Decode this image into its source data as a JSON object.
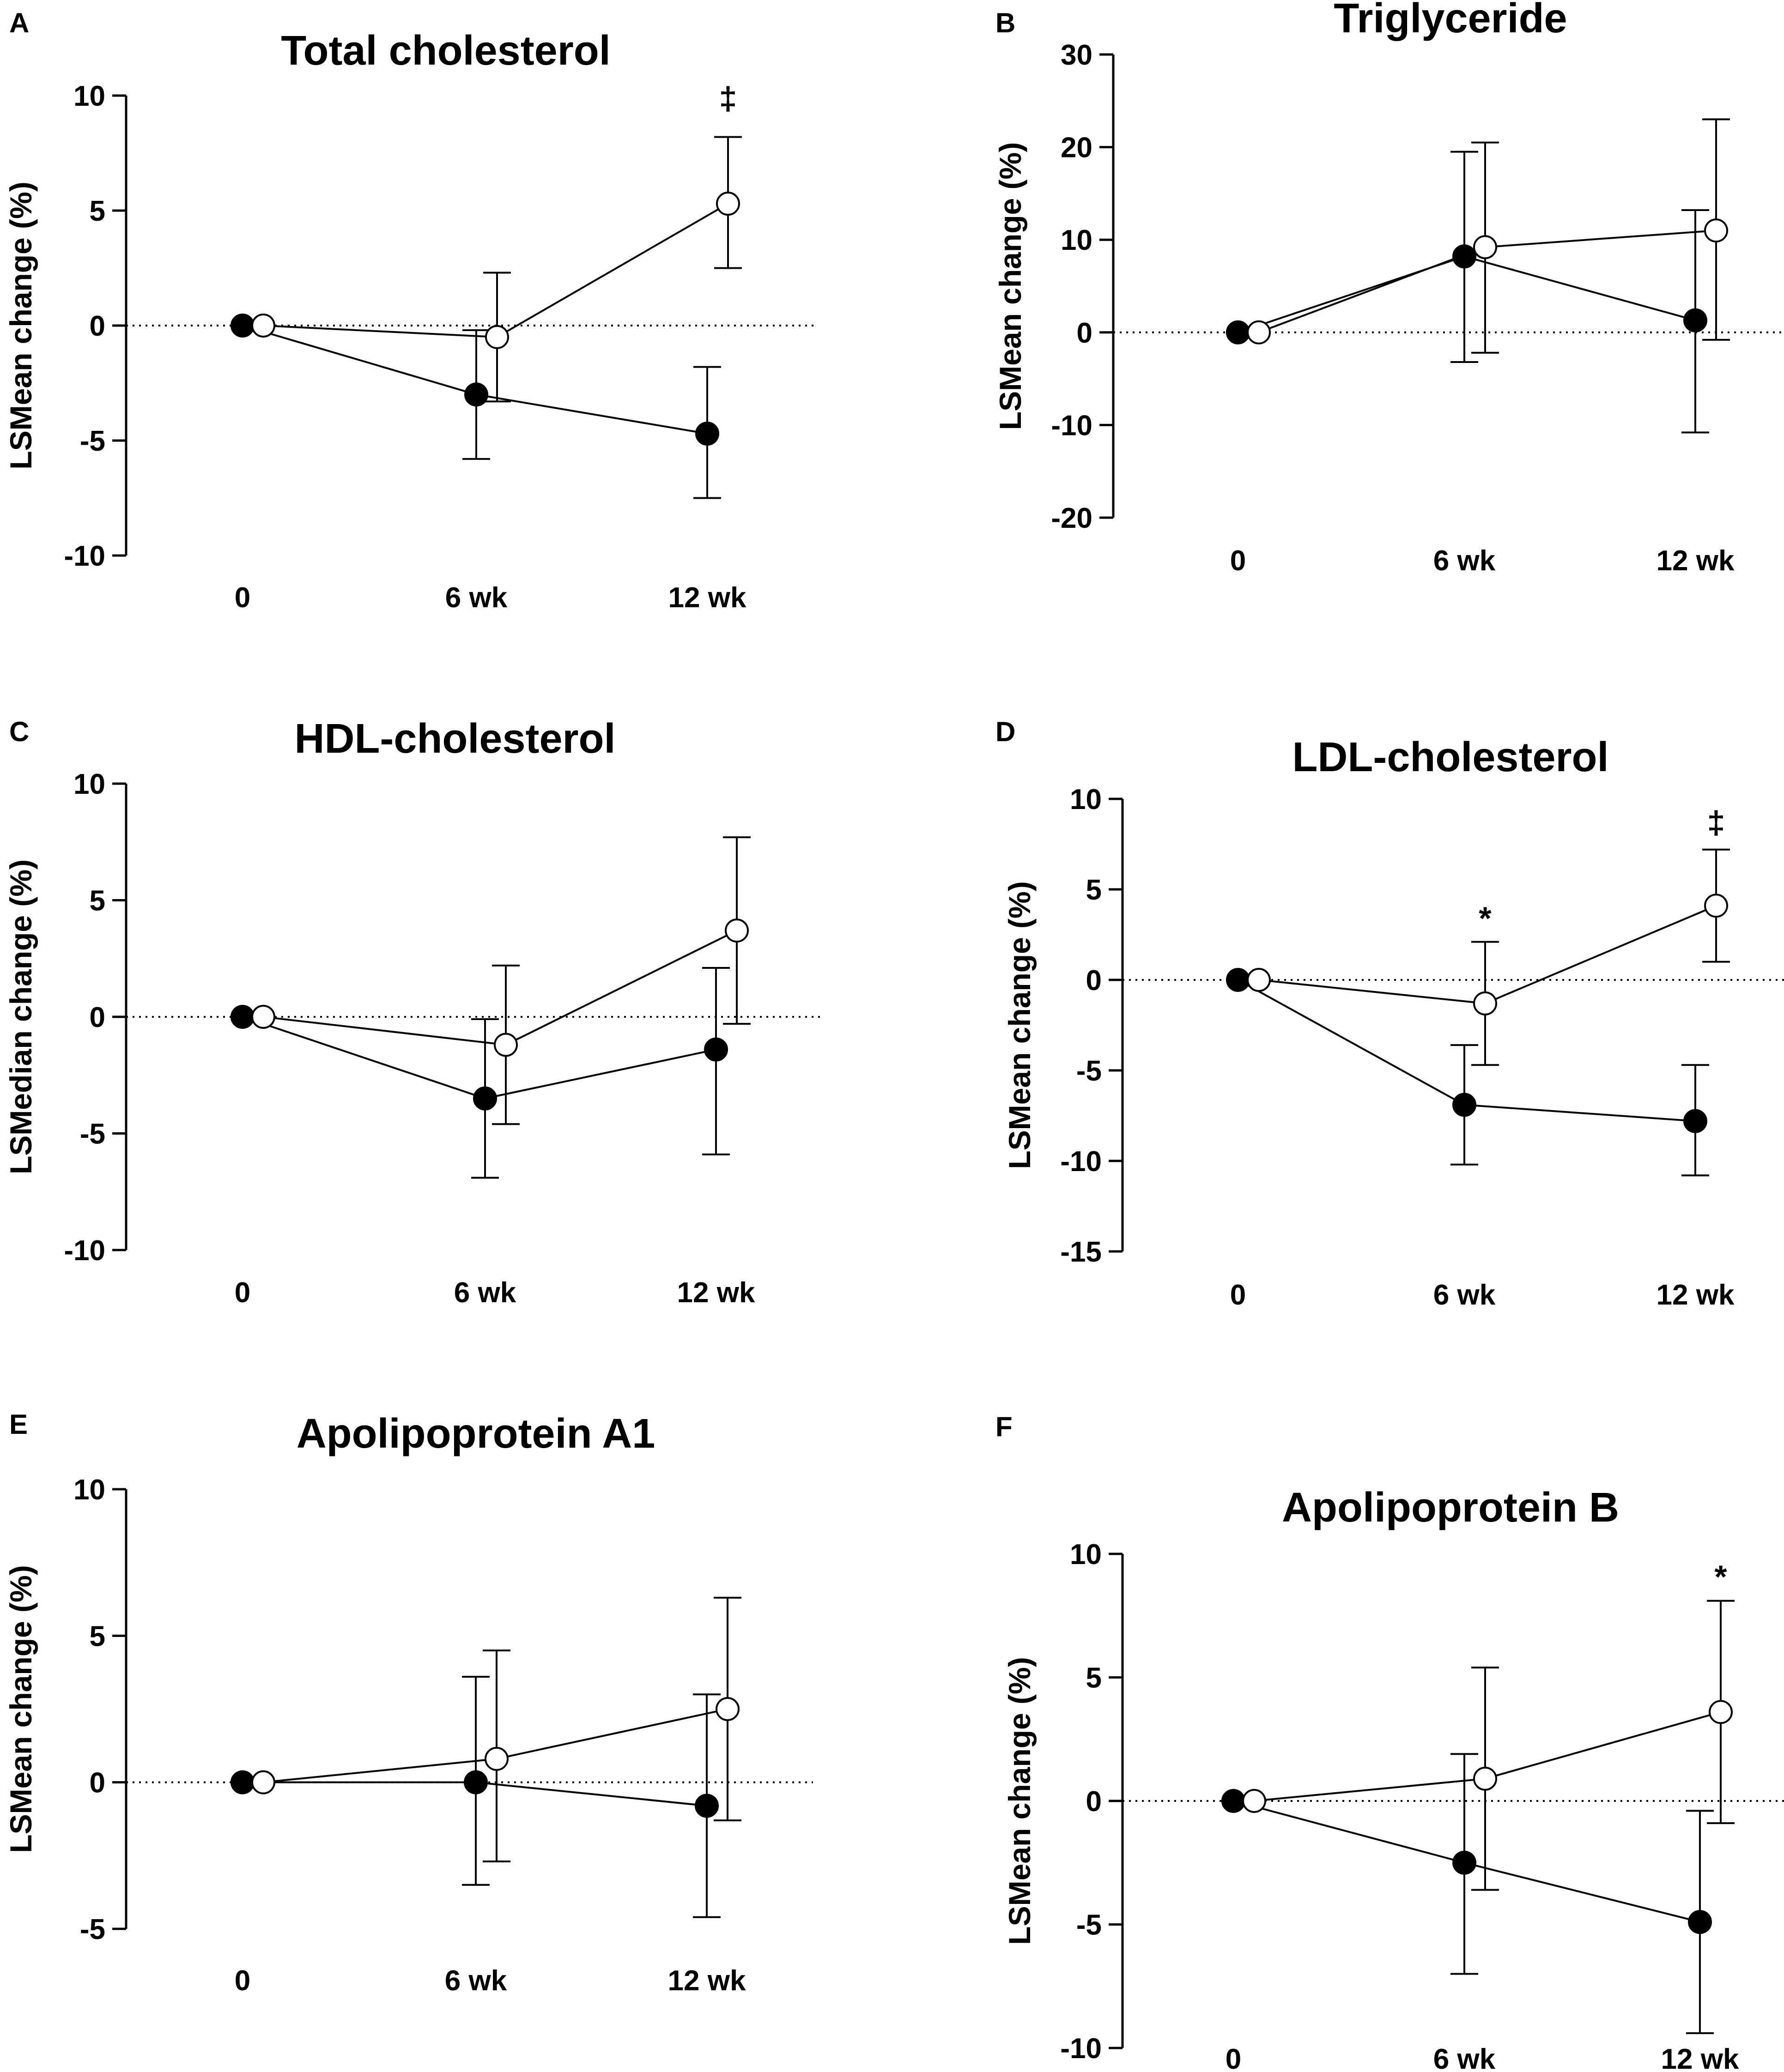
{
  "figure": {
    "markers": {
      "treatment": "filled-circle",
      "control": "open-circle"
    },
    "colors": {
      "ink": "#000000",
      "background": "#ffffff"
    }
  },
  "chart_data": [
    {
      "panel": "A",
      "type": "line",
      "title": "Total cholesterol",
      "ylabel": "LSMean change (%)",
      "ylim": [
        -10,
        10
      ],
      "yticks": [
        "10",
        "5",
        "0",
        "-5",
        "-10"
      ],
      "categories": [
        "0",
        "6 wk",
        "12 wk"
      ],
      "series": [
        {
          "name": "filled",
          "values": [
            0,
            -3.0,
            -4.7
          ],
          "err_low": [
            0,
            -5.8,
            -7.5
          ],
          "err_high": [
            0,
            -0.2,
            -1.8
          ]
        },
        {
          "name": "open",
          "values": [
            0,
            -0.5,
            5.3
          ],
          "err_low": [
            0,
            -3.3,
            2.5
          ],
          "err_high": [
            0,
            2.3,
            8.2
          ]
        }
      ],
      "annotations": [
        {
          "text": "‡",
          "category": 2,
          "value": 9.8
        }
      ]
    },
    {
      "panel": "B",
      "type": "line",
      "title": "Triglyceride",
      "ylabel": "LSMean change (%)",
      "ylim": [
        -20,
        30
      ],
      "yticks": [
        "30",
        "20",
        "10",
        "0",
        "-10",
        "-20"
      ],
      "categories": [
        "0",
        "6 wk",
        "12 wk"
      ],
      "series": [
        {
          "name": "filled",
          "values": [
            0,
            8.2,
            1.3
          ],
          "err_low": [
            0,
            -3.2,
            -10.8
          ],
          "err_high": [
            0,
            19.5,
            13.2
          ]
        },
        {
          "name": "open",
          "values": [
            0,
            9.2,
            11.0
          ],
          "err_low": [
            0,
            -2.2,
            -0.8
          ],
          "err_high": [
            0,
            20.5,
            23.0
          ]
        }
      ],
      "annotations": []
    },
    {
      "panel": "C",
      "type": "line",
      "title": "HDL-cholesterol",
      "ylabel": "LSMedian change (%)",
      "ylim": [
        -10,
        10
      ],
      "yticks": [
        "10",
        "5",
        "0",
        "-5",
        "-10"
      ],
      "categories": [
        "0",
        "6 wk",
        "12 wk"
      ],
      "series": [
        {
          "name": "filled",
          "values": [
            0,
            -3.5,
            -1.4
          ],
          "err_low": [
            0,
            -6.9,
            -5.9
          ],
          "err_high": [
            0,
            -0.1,
            2.1
          ]
        },
        {
          "name": "open",
          "values": [
            0,
            -1.2,
            3.7
          ],
          "err_low": [
            0,
            -4.6,
            -0.3
          ],
          "err_high": [
            0,
            2.2,
            7.7
          ]
        }
      ],
      "annotations": []
    },
    {
      "panel": "D",
      "type": "line",
      "title": "LDL-cholesterol",
      "ylabel": "LSMean change (%)",
      "ylim": [
        -15,
        10
      ],
      "yticks": [
        "10",
        "5",
        "0",
        "-5",
        "-10",
        "-15"
      ],
      "categories": [
        "0",
        "6 wk",
        "12 wk"
      ],
      "series": [
        {
          "name": "filled",
          "values": [
            0,
            -6.9,
            -7.8
          ],
          "err_low": [
            0,
            -10.2,
            -10.8
          ],
          "err_high": [
            0,
            -3.6,
            -4.7
          ]
        },
        {
          "name": "open",
          "values": [
            0,
            -1.3,
            4.1
          ],
          "err_low": [
            0,
            -4.7,
            1.0
          ],
          "err_high": [
            0,
            2.1,
            7.2
          ]
        }
      ],
      "annotations": [
        {
          "text": "*",
          "category": 1,
          "value": 3.3
        },
        {
          "text": "‡",
          "category": 2,
          "value": 8.6
        }
      ]
    },
    {
      "panel": "E",
      "type": "line",
      "title": "Apolipoprotein A1",
      "ylabel": "LSMean change (%)",
      "ylim": [
        -5,
        10
      ],
      "yticks": [
        "10",
        "5",
        "0",
        "-5"
      ],
      "categories": [
        "0",
        "6 wk",
        "12 wk"
      ],
      "series": [
        {
          "name": "filled",
          "values": [
            0,
            0.0,
            -0.8
          ],
          "err_low": [
            0,
            -3.5,
            -4.6
          ],
          "err_high": [
            0,
            3.6,
            3.0
          ]
        },
        {
          "name": "open",
          "values": [
            0,
            0.8,
            2.5
          ],
          "err_low": [
            0,
            -2.7,
            -1.3
          ],
          "err_high": [
            0,
            4.5,
            6.3
          ]
        }
      ],
      "annotations": []
    },
    {
      "panel": "F",
      "type": "line",
      "title": "Apolipoprotein B",
      "ylabel": "LSMean change (%)",
      "ylim": [
        -10,
        10
      ],
      "yticks": [
        "10",
        "5",
        "0",
        "-5",
        "-10"
      ],
      "categories": [
        "0",
        "6 wk",
        "12 wk"
      ],
      "series": [
        {
          "name": "filled",
          "values": [
            0,
            -2.5,
            -4.9
          ],
          "err_low": [
            0,
            -7.0,
            -9.4
          ],
          "err_high": [
            0,
            1.9,
            -0.4
          ]
        },
        {
          "name": "open",
          "values": [
            0,
            0.9,
            3.6
          ],
          "err_low": [
            0,
            -3.6,
            -0.9
          ],
          "err_high": [
            0,
            5.4,
            8.1
          ]
        }
      ],
      "annotations": [
        {
          "text": "*",
          "category": 2,
          "value": 9.0
        }
      ]
    }
  ]
}
